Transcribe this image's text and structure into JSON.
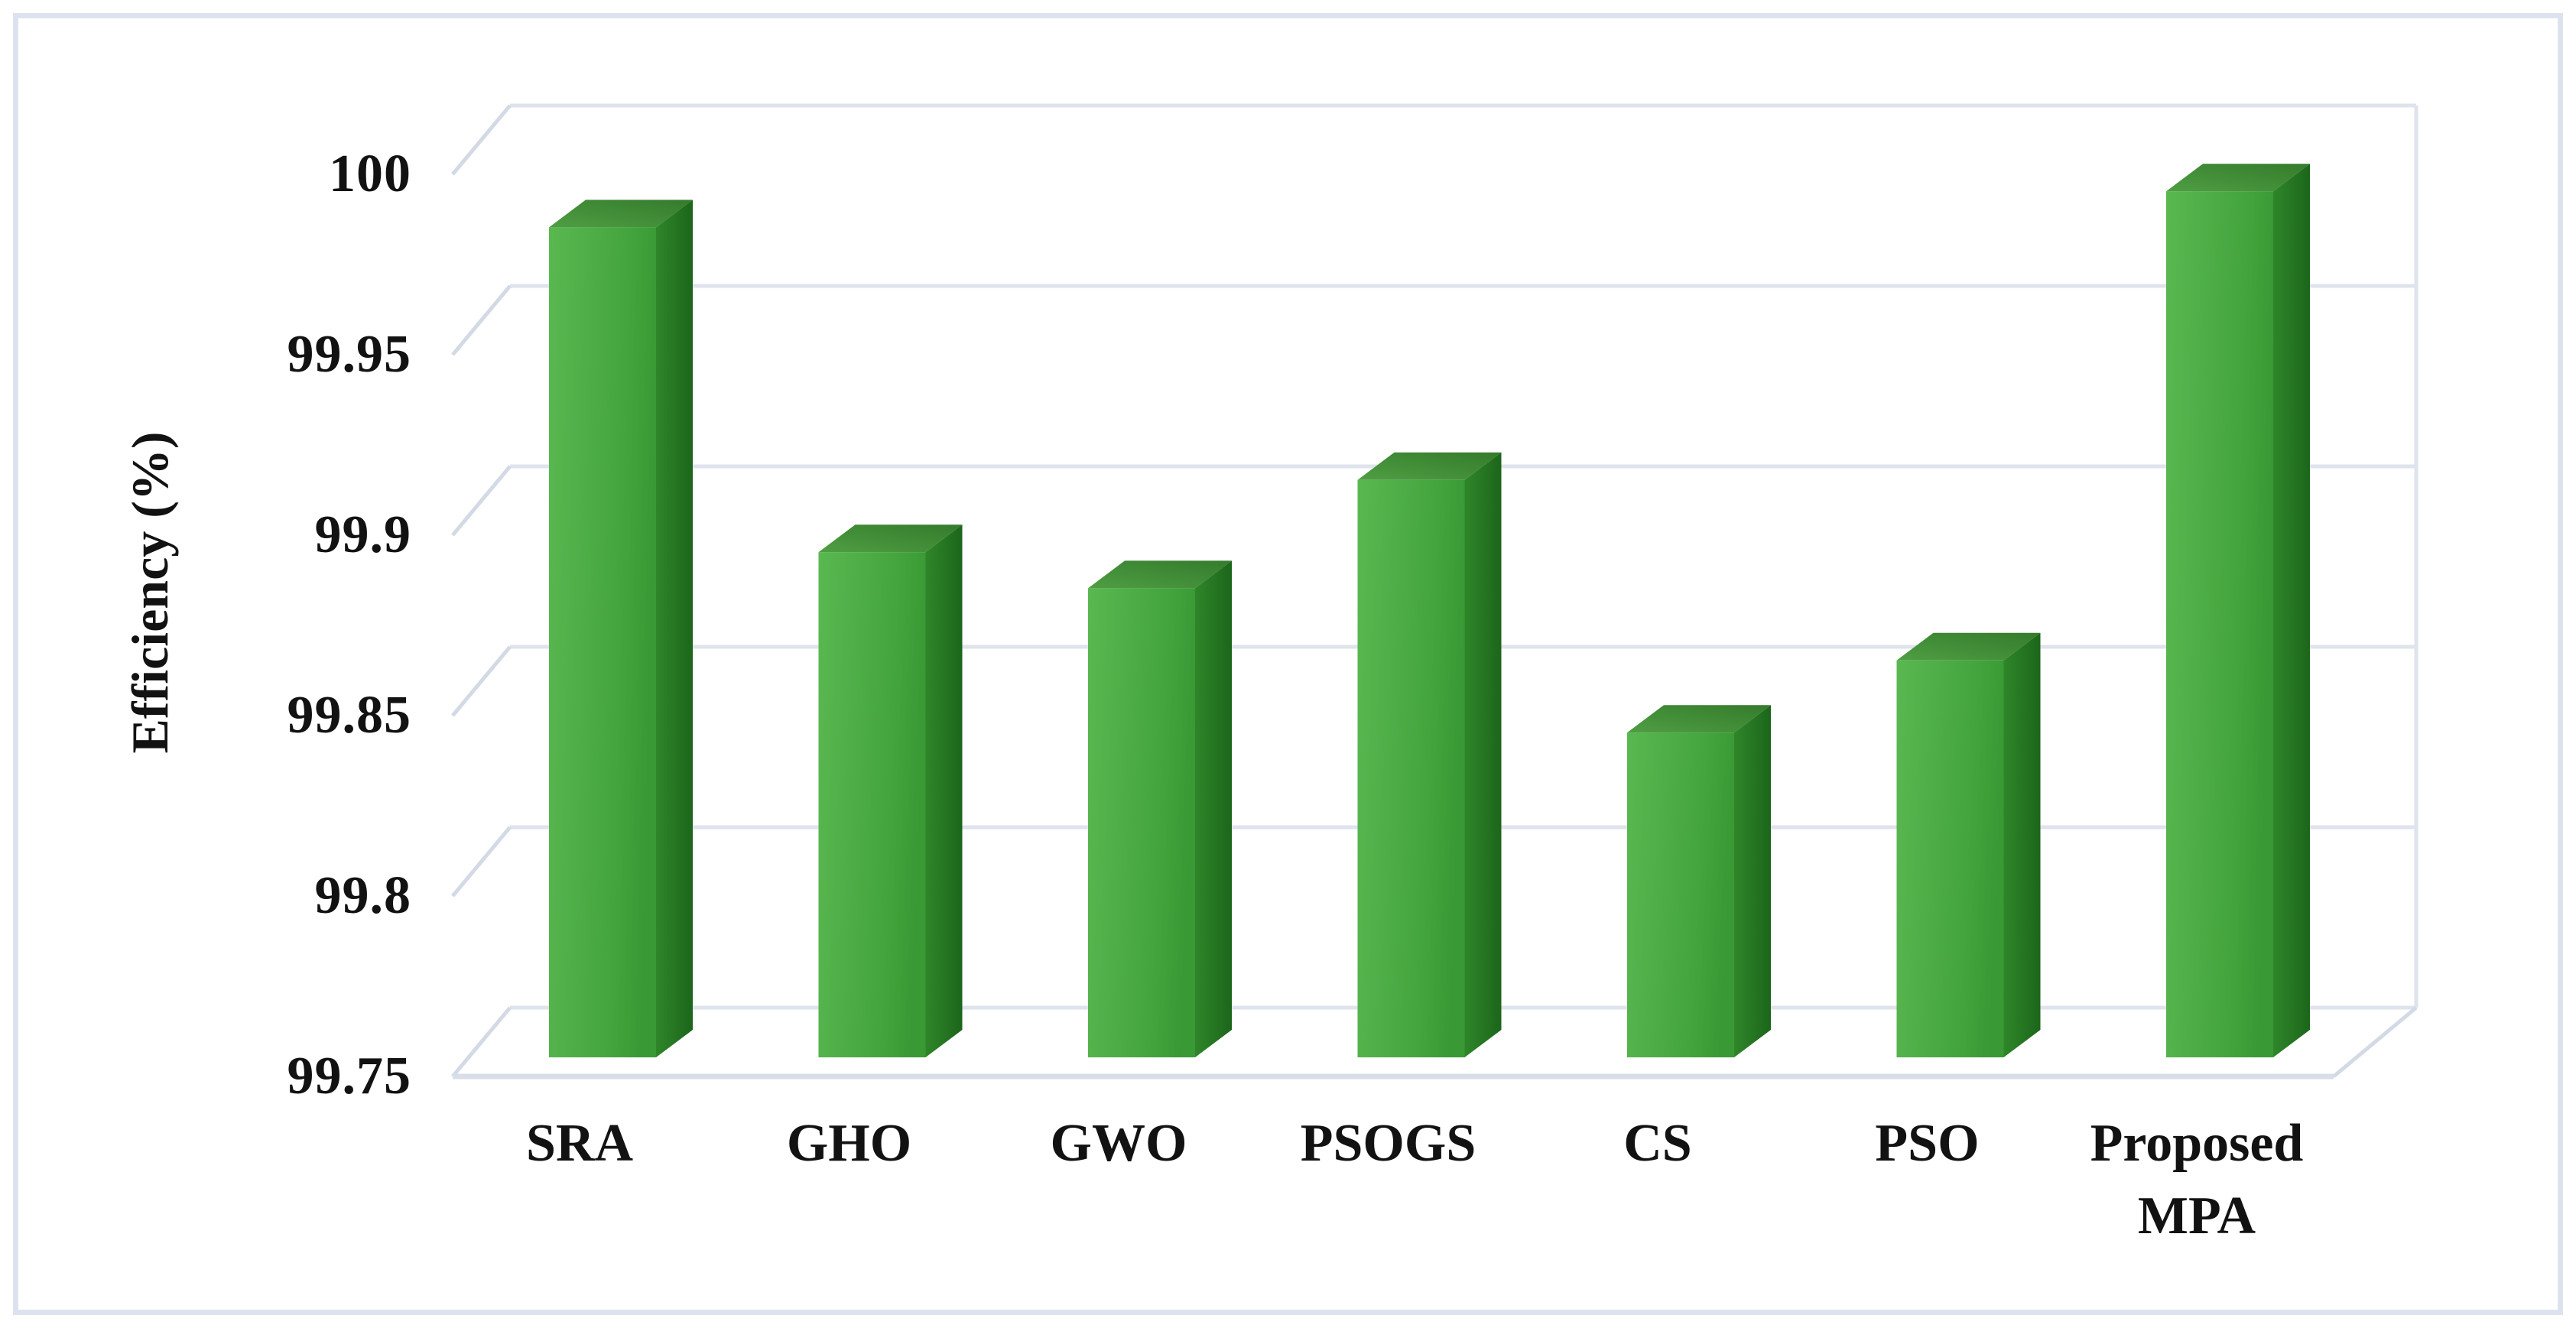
{
  "figure": {
    "border_color": "#dde3ee",
    "background_color": "#ffffff"
  },
  "chart_data": {
    "type": "bar",
    "style": "3d-column",
    "title": "",
    "xlabel": "",
    "ylabel": "Efficiency (%)",
    "categories": [
      "SRA",
      "GHO",
      "GWO",
      "PSOGS",
      "CS",
      "PSO",
      "Proposed MPA"
    ],
    "values": [
      99.98,
      99.89,
      99.88,
      99.91,
      99.84,
      99.86,
      99.99
    ],
    "ylim": [
      99.75,
      100
    ],
    "ytick_step": 0.05,
    "ytick_labels": [
      "100",
      "99.95",
      "99.9",
      "99.85",
      "99.8",
      "99.75"
    ],
    "grid": true,
    "legend_position": "none",
    "colors": {
      "bar_front_light": "#5ab851",
      "bar_front": "#44a43d",
      "bar_front_dark": "#399934",
      "bar_top_light": "#4f9e43",
      "bar_top_dark": "#347b2c",
      "bar_side_light": "#2f8629",
      "bar_side_dark": "#1c661b",
      "gridline": "#dfe3ec",
      "side_wall_line": "#d3dae6",
      "floor_edge": "#d8dde8",
      "text": "#121212"
    }
  }
}
